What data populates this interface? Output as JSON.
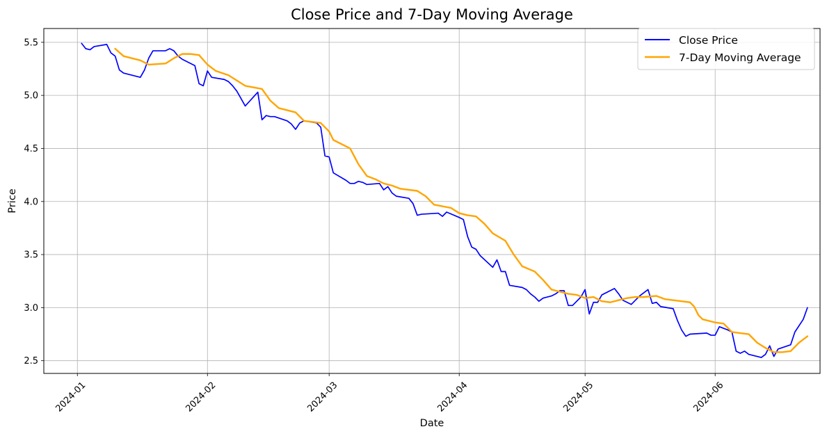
{
  "chart_data": {
    "type": "line",
    "title": "Close Price and 7-Day Moving Average",
    "xlabel": "Date",
    "ylabel": "Price",
    "x_range": [
      "2023-12-24",
      "2024-06-26"
    ],
    "ylim": [
      2.38,
      5.63
    ],
    "x_ticks": [
      "2024-01-01",
      "2024-02-01",
      "2024-03-01",
      "2024-04-01",
      "2024-05-01",
      "2024-06-01"
    ],
    "x_tick_labels": [
      "2024-01",
      "2024-02",
      "2024-03",
      "2024-04",
      "2024-05",
      "2024-06"
    ],
    "y_ticks": [
      2.5,
      3.0,
      3.5,
      4.0,
      4.5,
      5.0,
      5.5
    ],
    "y_tick_labels": [
      "2.5",
      "3.0",
      "3.5",
      "4.0",
      "4.5",
      "5.0",
      "5.5"
    ],
    "grid": true,
    "legend_position": "top-right",
    "series": [
      {
        "name": "Close Price",
        "color": "#0000ff",
        "points": [
          [
            "2024-01-02",
            5.49
          ],
          [
            "2024-01-03",
            5.44
          ],
          [
            "2024-01-04",
            5.43
          ],
          [
            "2024-01-05",
            5.46
          ],
          [
            "2024-01-08",
            5.48
          ],
          [
            "2024-01-09",
            5.4
          ],
          [
            "2024-01-10",
            5.37
          ],
          [
            "2024-01-11",
            5.24
          ],
          [
            "2024-01-12",
            5.21
          ],
          [
            "2024-01-16",
            5.17
          ],
          [
            "2024-01-17",
            5.24
          ],
          [
            "2024-01-18",
            5.35
          ],
          [
            "2024-01-19",
            5.42
          ],
          [
            "2024-01-22",
            5.42
          ],
          [
            "2024-01-23",
            5.44
          ],
          [
            "2024-01-24",
            5.42
          ],
          [
            "2024-01-25",
            5.37
          ],
          [
            "2024-01-26",
            5.34
          ],
          [
            "2024-01-29",
            5.28
          ],
          [
            "2024-01-30",
            5.11
          ],
          [
            "2024-01-31",
            5.09
          ],
          [
            "2024-02-01",
            5.23
          ],
          [
            "2024-02-02",
            5.17
          ],
          [
            "2024-02-05",
            5.15
          ],
          [
            "2024-02-06",
            5.13
          ],
          [
            "2024-02-07",
            5.09
          ],
          [
            "2024-02-08",
            5.04
          ],
          [
            "2024-02-09",
            4.97
          ],
          [
            "2024-02-10",
            4.9
          ],
          [
            "2024-02-13",
            5.03
          ],
          [
            "2024-02-14",
            4.77
          ],
          [
            "2024-02-15",
            4.81
          ],
          [
            "2024-02-16",
            4.8
          ],
          [
            "2024-02-17",
            4.8
          ],
          [
            "2024-02-20",
            4.76
          ],
          [
            "2024-02-21",
            4.73
          ],
          [
            "2024-02-22",
            4.68
          ],
          [
            "2024-02-23",
            4.74
          ],
          [
            "2024-02-24",
            4.76
          ],
          [
            "2024-02-27",
            4.74
          ],
          [
            "2024-02-28",
            4.7
          ],
          [
            "2024-02-29",
            4.43
          ],
          [
            "2024-03-01",
            4.42
          ],
          [
            "2024-03-02",
            4.27
          ],
          [
            "2024-03-05",
            4.2
          ],
          [
            "2024-03-06",
            4.17
          ],
          [
            "2024-03-07",
            4.17
          ],
          [
            "2024-03-08",
            4.19
          ],
          [
            "2024-03-09",
            4.18
          ],
          [
            "2024-03-10",
            4.16
          ],
          [
            "2024-03-13",
            4.17
          ],
          [
            "2024-03-14",
            4.11
          ],
          [
            "2024-03-15",
            4.14
          ],
          [
            "2024-03-16",
            4.08
          ],
          [
            "2024-03-17",
            4.05
          ],
          [
            "2024-03-20",
            4.03
          ],
          [
            "2024-03-21",
            3.98
          ],
          [
            "2024-03-22",
            3.87
          ],
          [
            "2024-03-23",
            3.88
          ],
          [
            "2024-03-27",
            3.89
          ],
          [
            "2024-03-28",
            3.86
          ],
          [
            "2024-03-29",
            3.9
          ],
          [
            "2024-04-01",
            3.85
          ],
          [
            "2024-04-02",
            3.83
          ],
          [
            "2024-04-03",
            3.67
          ],
          [
            "2024-04-04",
            3.57
          ],
          [
            "2024-04-05",
            3.55
          ],
          [
            "2024-04-06",
            3.49
          ],
          [
            "2024-04-09",
            3.38
          ],
          [
            "2024-04-10",
            3.45
          ],
          [
            "2024-04-11",
            3.34
          ],
          [
            "2024-04-12",
            3.34
          ],
          [
            "2024-04-13",
            3.21
          ],
          [
            "2024-04-16",
            3.19
          ],
          [
            "2024-04-17",
            3.17
          ],
          [
            "2024-04-18",
            3.13
          ],
          [
            "2024-04-19",
            3.1
          ],
          [
            "2024-04-20",
            3.06
          ],
          [
            "2024-04-21",
            3.09
          ],
          [
            "2024-04-23",
            3.11
          ],
          [
            "2024-04-24",
            3.13
          ],
          [
            "2024-04-25",
            3.16
          ],
          [
            "2024-04-26",
            3.16
          ],
          [
            "2024-04-27",
            3.02
          ],
          [
            "2024-04-28",
            3.02
          ],
          [
            "2024-04-30",
            3.1
          ],
          [
            "2024-05-01",
            3.17
          ],
          [
            "2024-05-02",
            2.94
          ],
          [
            "2024-05-03",
            3.05
          ],
          [
            "2024-05-04",
            3.05
          ],
          [
            "2024-05-05",
            3.12
          ],
          [
            "2024-05-08",
            3.18
          ],
          [
            "2024-05-09",
            3.13
          ],
          [
            "2024-05-10",
            3.07
          ],
          [
            "2024-05-12",
            3.03
          ],
          [
            "2024-05-13",
            3.07
          ],
          [
            "2024-05-14",
            3.11
          ],
          [
            "2024-05-16",
            3.17
          ],
          [
            "2024-05-17",
            3.04
          ],
          [
            "2024-05-18",
            3.05
          ],
          [
            "2024-05-19",
            3.01
          ],
          [
            "2024-05-22",
            2.99
          ],
          [
            "2024-05-23",
            2.88
          ],
          [
            "2024-05-24",
            2.79
          ],
          [
            "2024-05-25",
            2.73
          ],
          [
            "2024-05-26",
            2.75
          ],
          [
            "2024-05-30",
            2.76
          ],
          [
            "2024-05-31",
            2.74
          ],
          [
            "2024-06-01",
            2.74
          ],
          [
            "2024-06-02",
            2.82
          ],
          [
            "2024-06-04",
            2.79
          ],
          [
            "2024-06-05",
            2.77
          ],
          [
            "2024-06-06",
            2.59
          ],
          [
            "2024-06-07",
            2.57
          ],
          [
            "2024-06-08",
            2.59
          ],
          [
            "2024-06-09",
            2.56
          ],
          [
            "2024-06-11",
            2.54
          ],
          [
            "2024-06-12",
            2.53
          ],
          [
            "2024-06-13",
            2.56
          ],
          [
            "2024-06-14",
            2.64
          ],
          [
            "2024-06-15",
            2.54
          ],
          [
            "2024-06-16",
            2.61
          ],
          [
            "2024-06-19",
            2.65
          ],
          [
            "2024-06-20",
            2.77
          ],
          [
            "2024-06-22",
            2.89
          ],
          [
            "2024-06-23",
            3.0
          ]
        ]
      },
      {
        "name": "7-Day Moving Average",
        "color": "#ffa500",
        "points": [
          [
            "2024-01-10",
            5.44
          ],
          [
            "2024-01-12",
            5.37
          ],
          [
            "2024-01-16",
            5.33
          ],
          [
            "2024-01-18",
            5.29
          ],
          [
            "2024-01-22",
            5.3
          ],
          [
            "2024-01-24",
            5.35
          ],
          [
            "2024-01-26",
            5.39
          ],
          [
            "2024-01-28",
            5.39
          ],
          [
            "2024-01-30",
            5.38
          ],
          [
            "2024-02-01",
            5.29
          ],
          [
            "2024-02-03",
            5.23
          ],
          [
            "2024-02-06",
            5.19
          ],
          [
            "2024-02-08",
            5.14
          ],
          [
            "2024-02-10",
            5.09
          ],
          [
            "2024-02-14",
            5.06
          ],
          [
            "2024-02-16",
            4.95
          ],
          [
            "2024-02-18",
            4.88
          ],
          [
            "2024-02-22",
            4.84
          ],
          [
            "2024-02-24",
            4.76
          ],
          [
            "2024-02-28",
            4.74
          ],
          [
            "2024-03-01",
            4.66
          ],
          [
            "2024-03-02",
            4.58
          ],
          [
            "2024-03-06",
            4.5
          ],
          [
            "2024-03-08",
            4.35
          ],
          [
            "2024-03-10",
            4.24
          ],
          [
            "2024-03-12",
            4.21
          ],
          [
            "2024-03-14",
            4.17
          ],
          [
            "2024-03-16",
            4.15
          ],
          [
            "2024-03-18",
            4.12
          ],
          [
            "2024-03-22",
            4.1
          ],
          [
            "2024-03-24",
            4.05
          ],
          [
            "2024-03-26",
            3.97
          ],
          [
            "2024-03-30",
            3.94
          ],
          [
            "2024-04-01",
            3.89
          ],
          [
            "2024-04-03",
            3.87
          ],
          [
            "2024-04-05",
            3.86
          ],
          [
            "2024-04-07",
            3.79
          ],
          [
            "2024-04-09",
            3.7
          ],
          [
            "2024-04-12",
            3.63
          ],
          [
            "2024-04-14",
            3.5
          ],
          [
            "2024-04-16",
            3.39
          ],
          [
            "2024-04-19",
            3.34
          ],
          [
            "2024-04-21",
            3.26
          ],
          [
            "2024-04-23",
            3.17
          ],
          [
            "2024-04-25",
            3.15
          ],
          [
            "2024-04-27",
            3.13
          ],
          [
            "2024-04-29",
            3.12
          ],
          [
            "2024-05-01",
            3.09
          ],
          [
            "2024-05-03",
            3.1
          ],
          [
            "2024-05-05",
            3.06
          ],
          [
            "2024-05-07",
            3.05
          ],
          [
            "2024-05-09",
            3.07
          ],
          [
            "2024-05-11",
            3.09
          ],
          [
            "2024-05-13",
            3.1
          ],
          [
            "2024-05-15",
            3.1
          ],
          [
            "2024-05-18",
            3.11
          ],
          [
            "2024-05-20",
            3.08
          ],
          [
            "2024-05-22",
            3.07
          ],
          [
            "2024-05-24",
            3.06
          ],
          [
            "2024-05-26",
            3.05
          ],
          [
            "2024-05-27",
            3.01
          ],
          [
            "2024-05-28",
            2.93
          ],
          [
            "2024-05-29",
            2.89
          ],
          [
            "2024-06-01",
            2.86
          ],
          [
            "2024-06-03",
            2.85
          ],
          [
            "2024-06-05",
            2.77
          ],
          [
            "2024-06-07",
            2.76
          ],
          [
            "2024-06-09",
            2.75
          ],
          [
            "2024-06-11",
            2.67
          ],
          [
            "2024-06-13",
            2.62
          ],
          [
            "2024-06-15",
            2.58
          ],
          [
            "2024-06-17",
            2.58
          ],
          [
            "2024-06-19",
            2.59
          ],
          [
            "2024-06-21",
            2.67
          ],
          [
            "2024-06-23",
            2.73
          ]
        ]
      }
    ]
  }
}
